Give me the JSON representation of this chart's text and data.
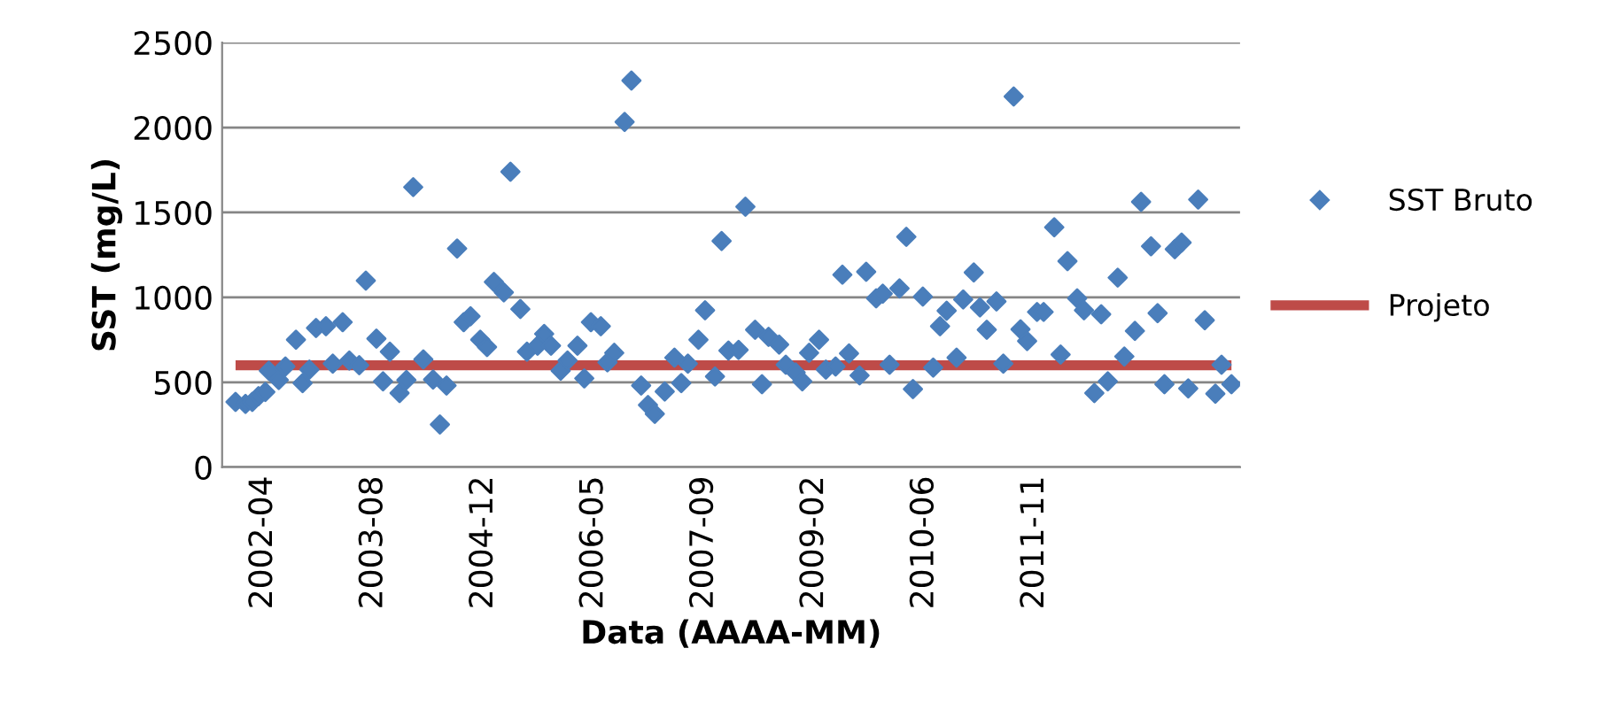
{
  "chart_data": {
    "type": "scatter",
    "xlabel": "Data (AAAA-MM)",
    "ylabel": "SST (mg/L)",
    "xlim": [
      "2001-10-01",
      "2014-05-24"
    ],
    "ylim": [
      0,
      2500
    ],
    "yticks": [
      0,
      500,
      1000,
      1500,
      2000,
      2500
    ],
    "xticks": [
      {
        "value": "2002-04-05",
        "label": "2002-04"
      },
      {
        "value": "2003-08-18",
        "label": "2003-08"
      },
      {
        "value": "2004-12-30",
        "label": "2004-12"
      },
      {
        "value": "2006-05-14",
        "label": "2006-05"
      },
      {
        "value": "2007-09-26",
        "label": "2007-09"
      },
      {
        "value": "2009-02-07",
        "label": "2009-02"
      },
      {
        "value": "2010-06-22",
        "label": "2010-06"
      },
      {
        "value": "2011-11-04",
        "label": "2011-11"
      }
    ],
    "grid": "y",
    "legend": "right",
    "marker": "diamond",
    "series": [
      {
        "name": "SST Bruto",
        "color": "#4a7ebb",
        "x": [
          "2001-12-01",
          "2002-01-15",
          "2002-02-15",
          "2002-03-15",
          "2002-04-15",
          "2002-05-01",
          "2002-06-15",
          "2002-07-15",
          "2002-09-01",
          "2002-10-01",
          "2002-11-01",
          "2002-12-01",
          "2003-01-15",
          "2003-02-15",
          "2003-04-01",
          "2003-05-01",
          "2003-06-15",
          "2003-07-15",
          "2003-09-01",
          "2003-10-01",
          "2003-11-01",
          "2003-12-15",
          "2004-01-15",
          "2004-02-15",
          "2004-04-01",
          "2004-05-15",
          "2004-06-15",
          "2004-07-15",
          "2004-09-01",
          "2004-10-01",
          "2004-11-01",
          "2004-12-15",
          "2005-01-15",
          "2005-02-15",
          "2005-04-01",
          "2005-05-01",
          "2005-06-15",
          "2005-07-15",
          "2005-09-01",
          "2005-10-01",
          "2005-11-01",
          "2005-12-15",
          "2006-01-15",
          "2006-03-01",
          "2006-04-01",
          "2006-05-01",
          "2006-06-15",
          "2006-07-15",
          "2006-08-15",
          "2006-10-01",
          "2006-11-01",
          "2006-12-15",
          "2007-01-15",
          "2007-02-15",
          "2007-04-01",
          "2007-05-15",
          "2007-06-15",
          "2007-07-15",
          "2007-09-01",
          "2007-10-01",
          "2007-11-15",
          "2007-12-15",
          "2008-01-15",
          "2008-03-01",
          "2008-04-01",
          "2008-05-15",
          "2008-06-15",
          "2008-07-15",
          "2008-09-01",
          "2008-10-01",
          "2008-11-15",
          "2008-12-15",
          "2009-01-15",
          "2009-03-01",
          "2009-04-01",
          "2009-05-15",
          "2009-06-15",
          "2009-07-15",
          "2009-09-01",
          "2009-10-01",
          "2009-11-15",
          "2009-12-15",
          "2010-01-15",
          "2010-03-01",
          "2010-04-01",
          "2010-05-01",
          "2010-06-15",
          "2010-08-01",
          "2010-09-01",
          "2010-10-01",
          "2010-11-15",
          "2010-12-15",
          "2011-02-01",
          "2011-03-01",
          "2011-04-01",
          "2011-05-15",
          "2011-06-15",
          "2011-08-01",
          "2011-09-01",
          "2011-10-01",
          "2011-11-15",
          "2011-12-15",
          "2012-02-01",
          "2012-03-01",
          "2012-04-01",
          "2012-05-15",
          "2012-06-15",
          "2012-08-01",
          "2012-09-01",
          "2012-10-01",
          "2012-11-15",
          "2012-12-15",
          "2013-02-01",
          "2013-03-01",
          "2013-04-15",
          "2013-05-15",
          "2013-06-15",
          "2013-08-01",
          "2013-09-01",
          "2013-10-01",
          "2013-11-15",
          "2013-12-15",
          "2014-02-01",
          "2014-03-01",
          "2014-04-15"
        ],
        "values": [
          384,
          373,
          384,
          418,
          443,
          568,
          513,
          593,
          750,
          495,
          575,
          820,
          830,
          610,
          854,
          628,
          600,
          1098,
          757,
          506,
          680,
          436,
          513,
          1649,
          635,
          516,
          251,
          481,
          1287,
          854,
          889,
          750,
          708,
          1091,
          1029,
          1740,
          931,
          680,
          715,
          785,
          715,
          568,
          628,
          715,
          523,
          854,
          830,
          617,
          673,
          2033,
          2277,
          481,
          366,
          314,
          446,
          645,
          495,
          610,
          750,
          924,
          534,
          1332,
          687,
          690,
          1534,
          809,
          488,
          767,
          722,
          603,
          558,
          506,
          673,
          750,
          575,
          593,
          1133,
          670,
          540,
          1151,
          994,
          1022,
          603,
          1053,
          1356,
          460,
          1004,
          586,
          830,
          921,
          645,
          987,
          1147,
          941,
          809,
          976,
          610,
          2183,
          812,
          743,
          914,
          914,
          1412,
          663,
          1213,
          994,
          924,
          436,
          900,
          506,
          1116,
          652,
          802,
          1562,
          1301,
          907,
          488,
          1283,
          1322,
          464,
          1576,
          865,
          432,
          603,
          488
        ]
      },
      {
        "name": "Projeto",
        "type": "line",
        "color": "#be4b48",
        "marker": "none",
        "line_style": "solid",
        "x": [
          "2001-12-01",
          "2014-04-15"
        ],
        "values": [
          600,
          600
        ]
      }
    ]
  }
}
